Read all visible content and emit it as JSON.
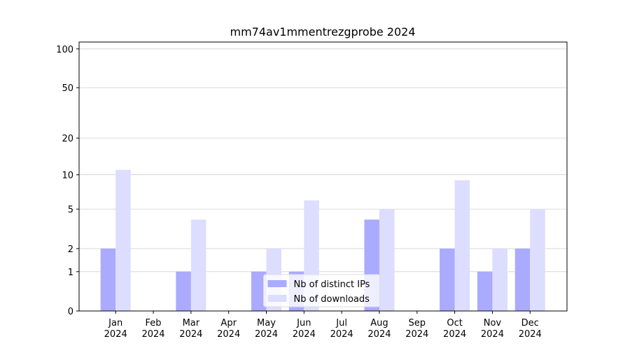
{
  "chart_data": {
    "type": "bar",
    "title": "mm74av1mmentrezgprobe 2024",
    "categories": [
      "Jan 2024",
      "Feb 2024",
      "Mar 2024",
      "Apr 2024",
      "May 2024",
      "Jun 2024",
      "Jul 2024",
      "Aug 2024",
      "Sep 2024",
      "Oct 2024",
      "Nov 2024",
      "Dec 2024"
    ],
    "series": [
      {
        "name": "Nb of distinct IPs",
        "color": "#aaaaff",
        "values": [
          2,
          0,
          1,
          0,
          1,
          1,
          0,
          4,
          0,
          2,
          1,
          2
        ]
      },
      {
        "name": "Nb of downloads",
        "color": "#ddddff",
        "values": [
          11,
          0,
          4,
          0,
          2,
          6,
          0,
          5,
          0,
          9,
          2,
          5
        ]
      }
    ],
    "y_scale": "log1p",
    "ylim": [
      0,
      113
    ],
    "yticks": [
      0,
      1,
      2,
      5,
      10,
      20,
      50,
      100
    ],
    "grid": true,
    "legend": "lower center"
  }
}
